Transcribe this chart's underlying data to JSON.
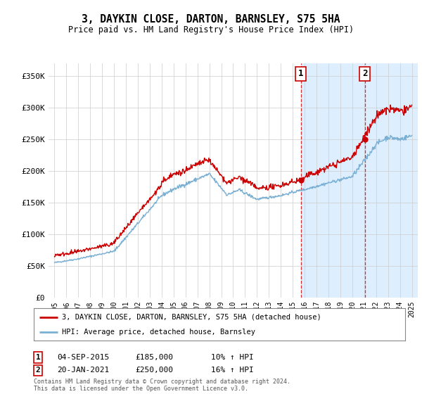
{
  "title": "3, DAYKIN CLOSE, DARTON, BARNSLEY, S75 5HA",
  "subtitle": "Price paid vs. HM Land Registry's House Price Index (HPI)",
  "hpi_label": "HPI: Average price, detached house, Barnsley",
  "property_label": "3, DAYKIN CLOSE, DARTON, BARNSLEY, S75 5HA (detached house)",
  "sale1_date": "04-SEP-2015",
  "sale1_price": 185000,
  "sale1_hpi": "10%",
  "sale2_date": "20-JAN-2021",
  "sale2_price": 250000,
  "sale2_hpi": "16%",
  "footer": "Contains HM Land Registry data © Crown copyright and database right 2024.\nThis data is licensed under the Open Government Licence v3.0.",
  "background_color": "#ffffff",
  "hpi_color": "#7ab0d4",
  "property_color": "#cc0000",
  "highlight_color": "#ddeeff",
  "grid_color": "#cccccc",
  "yticks": [
    0,
    50000,
    100000,
    150000,
    200000,
    250000,
    300000,
    350000
  ],
  "ylim": [
    0,
    370000
  ],
  "sale1_x": 2015.67,
  "sale2_x": 2021.05,
  "xmin": 1994.5,
  "xmax": 2025.5
}
